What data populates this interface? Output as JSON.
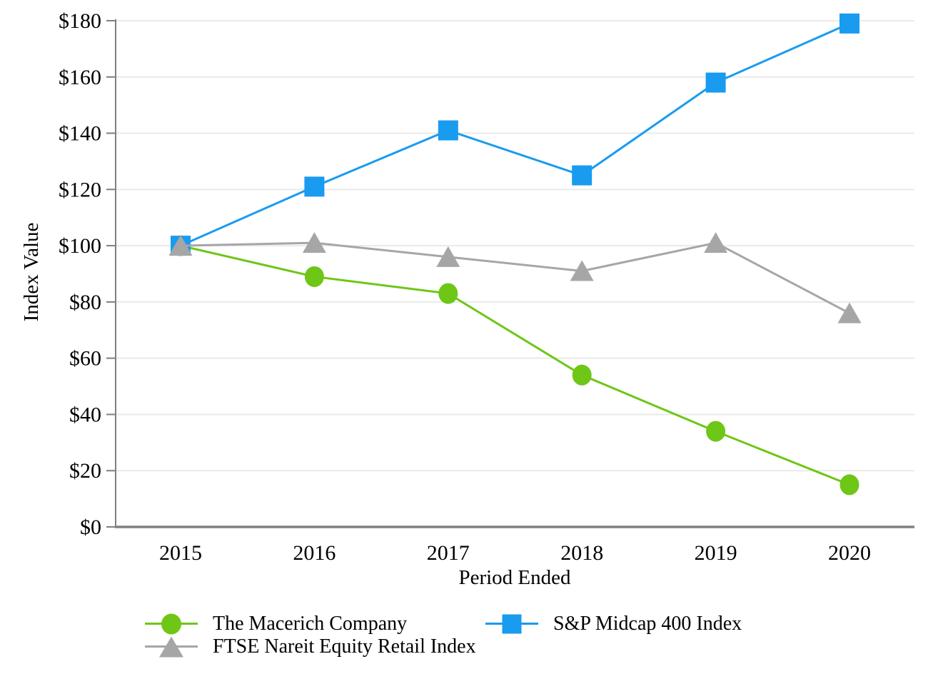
{
  "chart_data": {
    "type": "line",
    "title": "",
    "xlabel": "Period Ended",
    "ylabel": "Index Value",
    "categories": [
      "2015",
      "2016",
      "2017",
      "2018",
      "2019",
      "2020"
    ],
    "ytick_labels": [
      "$0",
      "$20",
      "$40",
      "$60",
      "$80",
      "$100",
      "$120",
      "$140",
      "$160",
      "$180"
    ],
    "ylim": [
      0,
      180
    ],
    "ytick_step": 20,
    "grid": "horizontal",
    "legend_position": "bottom",
    "series": [
      {
        "name": "The Macerich Company",
        "marker": "circle",
        "marker_icon": "circle-marker-icon",
        "color": "#6EC616",
        "values": [
          100,
          89,
          83,
          54,
          34,
          15
        ]
      },
      {
        "name": "S&P Midcap 400 Index",
        "marker": "square",
        "marker_icon": "square-marker-icon",
        "color": "#199BF0",
        "values": [
          100,
          121,
          141,
          125,
          158,
          179
        ]
      },
      {
        "name": "FTSE Nareit Equity Retail Index",
        "marker": "triangle",
        "marker_icon": "triangle-marker-icon",
        "color": "#A6A6A6",
        "values": [
          100,
          101,
          96,
          91,
          101,
          76
        ]
      }
    ],
    "colors": {
      "gridline": "#EAEAEA",
      "axis": "#808080",
      "text": "#000000",
      "background": "#FFFFFF"
    }
  }
}
